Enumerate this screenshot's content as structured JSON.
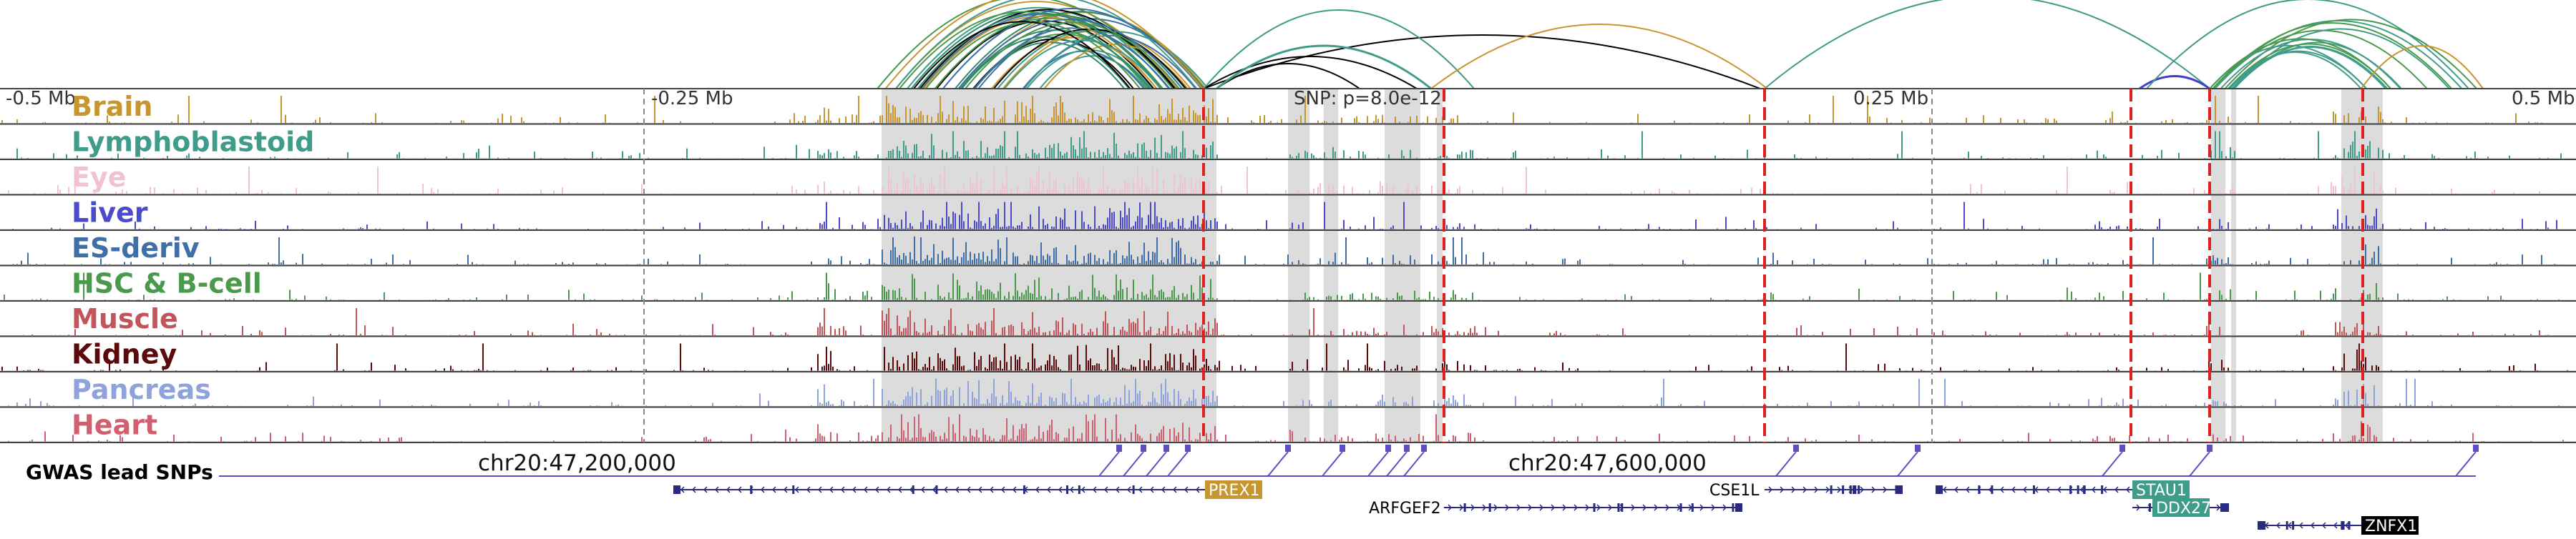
{
  "region": {
    "left_tick": "-0.5 Mb",
    "left_mid_tick": "-0.25 Mb",
    "right_mid_tick": "0.25 Mb",
    "right_tick": "0.5 Mb",
    "snp_label": "SNP: p=8.0e-12",
    "coord_label_1": "chr20:47,200,000",
    "coord_label_2": "chr20:47,600,000",
    "gwas_label": "GWAS lead SNPs"
  },
  "tracks": [
    {
      "name": "Brain",
      "color": "#c8962e"
    },
    {
      "name": "Lymphoblastoid",
      "color": "#3f9c8a"
    },
    {
      "name": "Eye",
      "color": "#f0c4cf"
    },
    {
      "name": "Liver",
      "color": "#4a4acb"
    },
    {
      "name": "ES-deriv",
      "color": "#3f6fa8"
    },
    {
      "name": "HSC & B-cell",
      "color": "#4b9a4b"
    },
    {
      "name": "Muscle",
      "color": "#c2555a"
    },
    {
      "name": "Kidney",
      "color": "#5a0a0a"
    },
    {
      "name": "Pancreas",
      "color": "#8ea3dc"
    },
    {
      "name": "Heart",
      "color": "#d06070"
    }
  ],
  "genes": [
    {
      "name": "PREX1",
      "label_bg": "#c8962e",
      "label_color": "#ffffff"
    },
    {
      "name": "ARFGEF2",
      "label_bg": "",
      "label_color": "#000000"
    },
    {
      "name": "CSE1L",
      "label_bg": "",
      "label_color": "#000000"
    },
    {
      "name": "STAU1",
      "label_bg": "#3f9c8a",
      "label_color": "#ffffff"
    },
    {
      "name": "DDX27",
      "label_bg": "#3f9c8a",
      "label_color": "#ffffff"
    },
    {
      "name": "ZNFX1",
      "label_bg": "#000000",
      "label_color": "#ffffff"
    }
  ],
  "colors": {
    "gwas": "#5b4fc4",
    "snp_line": "#e02020",
    "highlight": "#dcdcdc",
    "gene_line": "#2a2a80"
  }
}
